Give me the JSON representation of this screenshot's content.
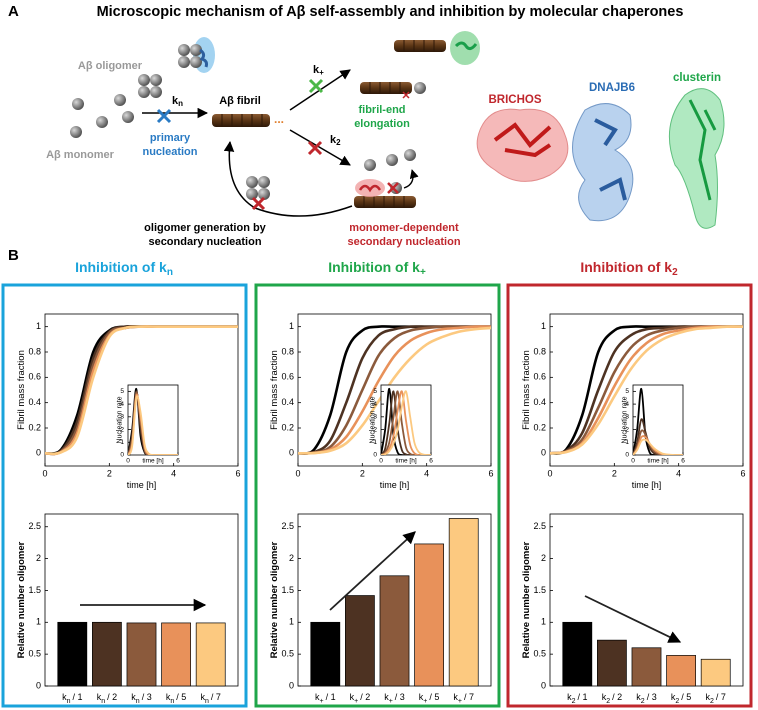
{
  "panel_a": {
    "label": "A",
    "title": "Microscopic mechanism of Aβ self-assembly and inhibition by molecular chaperones",
    "oligomer": "Aβ oligomer",
    "monomer": "Aβ monomer",
    "fibril": "Aβ fibril",
    "kn_symbol": "k",
    "kn_sub": "n",
    "primary": [
      "primary",
      "nucleation"
    ],
    "kplus_symbol": "k",
    "kplus_sub": "+",
    "elongation": [
      "fibril-end",
      "elongation"
    ],
    "k2_symbol": "k",
    "k2_sub": "2",
    "monomer_dependent": [
      "monomer-dependent",
      "secondary nucleation"
    ],
    "oligomer_generation": [
      "oligomer generation by",
      "secondary nucleation"
    ],
    "chaperones": [
      "BRICHOS",
      "DNAJB6",
      "clusterin"
    ]
  },
  "panel_b": {
    "label": "B",
    "panels": [
      {
        "title": "Inhibition of k",
        "title_sub": "n",
        "color": "#1aa3db"
      },
      {
        "title": "Inhibition of k",
        "title_sub": "+",
        "color": "#1fa64a"
      },
      {
        "title": "Inhibition of k",
        "title_sub": "2",
        "color": "#c0272d"
      }
    ]
  },
  "chart_data": [
    {
      "type": "line",
      "ylabel": "Fibril mass fraction",
      "xlabel": "time [h]",
      "x": [
        0,
        0.5,
        1,
        1.5,
        2,
        2.5,
        3,
        3.5,
        4,
        4.5,
        5,
        5.5,
        6
      ],
      "xlim": [
        0,
        6
      ],
      "xticks": [
        0,
        2,
        4,
        6
      ],
      "ylim": [
        -0.1,
        1.1
      ],
      "yticks": [
        0,
        0.2,
        0.4,
        0.6,
        0.8,
        1
      ],
      "series": [
        {
          "color": "#000000",
          "values": [
            0,
            0.03,
            0.3,
            0.8,
            0.97,
            1,
            1,
            1,
            1,
            1,
            1,
            1,
            1
          ]
        },
        {
          "color": "#4d3222",
          "values": [
            0,
            0.02,
            0.25,
            0.75,
            0.96,
            1,
            1,
            1,
            1,
            1,
            1,
            1,
            1
          ]
        },
        {
          "color": "#8b5a3c",
          "values": [
            0,
            0.015,
            0.2,
            0.7,
            0.95,
            0.99,
            1,
            1,
            1,
            1,
            1,
            1,
            1
          ]
        },
        {
          "color": "#e8915a",
          "values": [
            0,
            0.01,
            0.16,
            0.65,
            0.93,
            0.99,
            1,
            1,
            1,
            1,
            1,
            1,
            1
          ]
        },
        {
          "color": "#fcc980",
          "values": [
            0,
            0.008,
            0.13,
            0.6,
            0.92,
            0.99,
            1,
            1,
            1,
            1,
            1,
            1,
            1
          ]
        }
      ],
      "inset": {
        "ylabel": "Nucleation rate",
        "xlabel": "time [h]",
        "x": [
          0,
          0.5,
          1,
          1.5,
          2,
          2.5,
          3,
          3.5,
          4,
          4.5,
          5,
          5.5,
          6
        ],
        "xlim": [
          0,
          6
        ],
        "xticks": [
          0,
          6
        ],
        "ylim": [
          0,
          5.5
        ],
        "yticks": [
          0,
          1,
          2,
          3,
          4,
          5
        ],
        "series": [
          {
            "color": "#000000",
            "values": [
              0,
              2,
              5.2,
              1.5,
              0.2,
              0,
              0,
              0,
              0,
              0,
              0,
              0,
              0
            ]
          },
          {
            "color": "#4d3222",
            "values": [
              0,
              1.6,
              5,
              2,
              0.3,
              0,
              0,
              0,
              0,
              0,
              0,
              0,
              0
            ]
          },
          {
            "color": "#8b5a3c",
            "values": [
              0,
              1.2,
              4.9,
              2.6,
              0.4,
              0,
              0,
              0,
              0,
              0,
              0,
              0,
              0
            ]
          },
          {
            "color": "#e8915a",
            "values": [
              0,
              0.9,
              4.7,
              3,
              0.6,
              0.05,
              0,
              0,
              0,
              0,
              0,
              0,
              0
            ]
          },
          {
            "color": "#fcc980",
            "values": [
              0,
              0.7,
              4.5,
              3.4,
              0.8,
              0.1,
              0,
              0,
              0,
              0,
              0,
              0,
              0
            ]
          }
        ]
      }
    },
    {
      "type": "bar",
      "ylabel": "Relative number oligomer",
      "category_symbol": "k",
      "category_subscript": "n",
      "categories": [
        "/ 1",
        "/ 2",
        "/ 3",
        "/ 5",
        "/ 7"
      ],
      "values": [
        1,
        1,
        0.99,
        0.99,
        0.99
      ],
      "colors": [
        "#000000",
        "#4d3222",
        "#8b5a3c",
        "#e8915a",
        "#fcc980"
      ],
      "ylim": [
        0,
        2.7
      ],
      "yticks": [
        0,
        0.5,
        1,
        1.5,
        2,
        2.5
      ]
    },
    {
      "type": "line",
      "ylabel": "Fibril mass fraction",
      "xlabel": "time [h]",
      "x": [
        0,
        0.5,
        1,
        1.5,
        2,
        2.5,
        3,
        3.5,
        4,
        4.5,
        5,
        5.5,
        6
      ],
      "xlim": [
        0,
        6
      ],
      "xticks": [
        0,
        2,
        4,
        6
      ],
      "ylim": [
        -0.1,
        1.1
      ],
      "yticks": [
        0,
        0.2,
        0.4,
        0.6,
        0.8,
        1
      ],
      "series": [
        {
          "color": "#000000",
          "values": [
            0,
            0.03,
            0.3,
            0.8,
            0.97,
            1,
            1,
            1,
            1,
            1,
            1,
            1,
            1
          ]
        },
        {
          "color": "#4d3222",
          "values": [
            0,
            0.01,
            0.1,
            0.4,
            0.75,
            0.93,
            0.98,
            1,
            1,
            1,
            1,
            1,
            1
          ]
        },
        {
          "color": "#8b5a3c",
          "values": [
            0,
            0.005,
            0.05,
            0.22,
            0.5,
            0.77,
            0.91,
            0.97,
            0.99,
            1,
            1,
            1,
            1
          ]
        },
        {
          "color": "#e8915a",
          "values": [
            0,
            0.003,
            0.03,
            0.13,
            0.33,
            0.57,
            0.77,
            0.89,
            0.95,
            0.98,
            0.99,
            1,
            1
          ]
        },
        {
          "color": "#fcc980",
          "values": [
            0,
            0.002,
            0.02,
            0.08,
            0.22,
            0.41,
            0.6,
            0.75,
            0.86,
            0.92,
            0.96,
            0.98,
            0.99
          ]
        }
      ],
      "inset": {
        "ylabel": "Nucleation rate",
        "xlabel": "time [h]",
        "x": [
          0,
          0.5,
          1,
          1.5,
          2,
          2.5,
          3,
          3.5,
          4,
          4.5,
          5,
          5.5,
          6
        ],
        "xlim": [
          0,
          6
        ],
        "xticks": [
          0,
          6
        ],
        "ylim": [
          0,
          5.5
        ],
        "yticks": [
          0,
          1,
          2,
          3,
          4,
          5
        ],
        "series": [
          {
            "color": "#000000",
            "values": [
              0,
              2,
              5.2,
              1.5,
              0.2,
              0,
              0,
              0,
              0,
              0,
              0,
              0,
              0
            ]
          },
          {
            "color": "#4d3222",
            "values": [
              0,
              0.5,
              2.5,
              5,
              2,
              0.4,
              0.05,
              0,
              0,
              0,
              0,
              0,
              0
            ]
          },
          {
            "color": "#8b5a3c",
            "values": [
              0,
              0.2,
              1,
              3,
              5,
              2.5,
              0.6,
              0.1,
              0,
              0,
              0,
              0,
              0
            ]
          },
          {
            "color": "#e8915a",
            "values": [
              0,
              0.1,
              0.5,
              1.5,
              3.5,
              5,
              2.7,
              0.8,
              0.15,
              0,
              0,
              0,
              0
            ]
          },
          {
            "color": "#fcc980",
            "values": [
              0,
              0.05,
              0.3,
              0.9,
              2,
              3.8,
              5,
              3,
              1,
              0.25,
              0.05,
              0,
              0
            ]
          }
        ]
      }
    },
    {
      "type": "bar",
      "ylabel": "Relative number oligomer",
      "category_symbol": "k",
      "category_subscript": "+",
      "categories": [
        "/ 1",
        "/ 2",
        "/ 3",
        "/ 5",
        "/ 7"
      ],
      "values": [
        1,
        1.42,
        1.73,
        2.23,
        2.63
      ],
      "colors": [
        "#000000",
        "#4d3222",
        "#8b5a3c",
        "#e8915a",
        "#fcc980"
      ],
      "ylim": [
        0,
        2.7
      ],
      "yticks": [
        0,
        0.5,
        1,
        1.5,
        2,
        2.5
      ]
    },
    {
      "type": "line",
      "ylabel": "Fibril mass fraction",
      "xlabel": "time [h]",
      "x": [
        0,
        0.5,
        1,
        1.5,
        2,
        2.5,
        3,
        3.5,
        4,
        4.5,
        5,
        5.5,
        6
      ],
      "xlim": [
        0,
        6
      ],
      "xticks": [
        0,
        2,
        4,
        6
      ],
      "ylim": [
        -0.1,
        1.1
      ],
      "yticks": [
        0,
        0.2,
        0.4,
        0.6,
        0.8,
        1
      ],
      "series": [
        {
          "color": "#000000",
          "values": [
            0,
            0.03,
            0.3,
            0.8,
            0.97,
            1,
            1,
            1,
            1,
            1,
            1,
            1,
            1
          ]
        },
        {
          "color": "#4d3222",
          "values": [
            0,
            0.02,
            0.16,
            0.5,
            0.8,
            0.93,
            0.98,
            0.99,
            1,
            1,
            1,
            1,
            1
          ]
        },
        {
          "color": "#8b5a3c",
          "values": [
            0,
            0.015,
            0.11,
            0.36,
            0.64,
            0.83,
            0.93,
            0.97,
            0.99,
            1,
            1,
            1,
            1
          ]
        },
        {
          "color": "#e8915a",
          "values": [
            0,
            0.012,
            0.08,
            0.28,
            0.53,
            0.74,
            0.87,
            0.94,
            0.97,
            0.99,
            1,
            1,
            1
          ]
        },
        {
          "color": "#fcc980",
          "values": [
            0,
            0.01,
            0.07,
            0.23,
            0.45,
            0.66,
            0.81,
            0.9,
            0.95,
            0.98,
            0.99,
            1,
            1
          ]
        }
      ],
      "inset": {
        "ylabel": "Nucleation rate",
        "xlabel": "time [h]",
        "x": [
          0,
          0.5,
          1,
          1.5,
          2,
          2.5,
          3,
          3.5,
          4,
          4.5,
          5,
          5.5,
          6
        ],
        "xlim": [
          0,
          6
        ],
        "xticks": [
          0,
          6
        ],
        "ylim": [
          0,
          5.5
        ],
        "yticks": [
          0,
          1,
          2,
          3,
          4,
          5
        ],
        "series": [
          {
            "color": "#000000",
            "values": [
              0,
              2,
              5.2,
              1.5,
              0.2,
              0,
              0,
              0,
              0,
              0,
              0,
              0,
              0
            ]
          },
          {
            "color": "#4d3222",
            "values": [
              0,
              1,
              2.8,
              1.8,
              0.6,
              0.15,
              0.03,
              0,
              0,
              0,
              0,
              0,
              0
            ]
          },
          {
            "color": "#8b5a3c",
            "values": [
              0,
              0.7,
              1.9,
              1.6,
              0.8,
              0.3,
              0.1,
              0.02,
              0,
              0,
              0,
              0,
              0
            ]
          },
          {
            "color": "#e8915a",
            "values": [
              0,
              0.5,
              1.4,
              1.4,
              0.9,
              0.45,
              0.2,
              0.07,
              0.02,
              0,
              0,
              0,
              0
            ]
          },
          {
            "color": "#fcc980",
            "values": [
              0,
              0.4,
              1.1,
              1.2,
              0.9,
              0.55,
              0.3,
              0.12,
              0.05,
              0.02,
              0,
              0,
              0
            ]
          }
        ]
      }
    },
    {
      "type": "bar",
      "ylabel": "Relative number oligomer",
      "category_symbol": "k",
      "category_subscript": "2",
      "categories": [
        "/ 1",
        "/ 2",
        "/ 3",
        "/ 5",
        "/ 7"
      ],
      "values": [
        1,
        0.72,
        0.6,
        0.48,
        0.42
      ],
      "colors": [
        "#000000",
        "#4d3222",
        "#8b5a3c",
        "#e8915a",
        "#fcc980"
      ],
      "ylim": [
        0,
        2.7
      ],
      "yticks": [
        0,
        0.5,
        1,
        1.5,
        2,
        2.5
      ]
    }
  ]
}
